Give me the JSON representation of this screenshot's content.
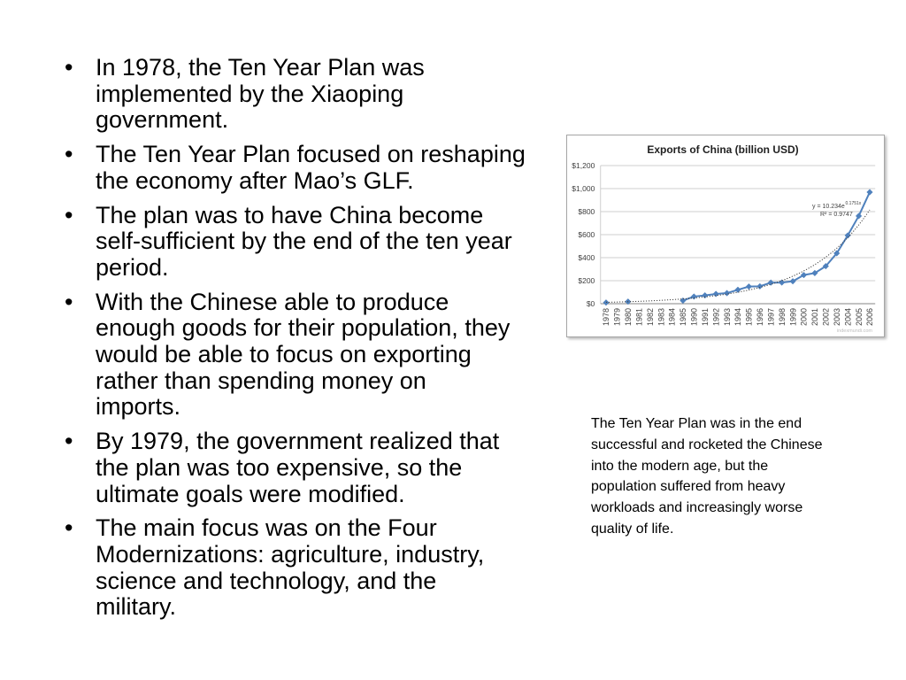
{
  "slide": {
    "bullet_symbol": "•",
    "bullets": [
      {
        "lines": [
          "In 1978, the Ten Year Plan was",
          "implemented by the Xiaoping",
          "government."
        ]
      },
      {
        "lines": [
          "The Ten Year Plan focused on reshaping",
          "the economy after Mao’s GLF."
        ]
      },
      {
        "lines": [
          "The plan was to have China become",
          "self-sufficient by the end of the ten year",
          "period."
        ]
      },
      {
        "lines": [
          "With the Chinese able to produce",
          "enough goods for their population, they",
          "would be able to focus on exporting",
          "rather than spending money on",
          "imports."
        ]
      },
      {
        "lines": [
          "By 1979, the government realized that",
          "the plan was too expensive, so the",
          "ultimate goals were modified."
        ]
      },
      {
        "lines": [
          "The main focus was on the Four",
          "Modernizations: agriculture, industry,",
          "science and technology, and the",
          "military."
        ]
      }
    ],
    "caption": {
      "lines": [
        "The Ten Year Plan was in the end",
        "successful and rocketed the Chinese",
        "into the modern age, but the",
        "population suffered from heavy",
        "workloads and increasingly worse",
        "quality of life."
      ]
    },
    "colors": {
      "background": "#FFFFFF",
      "text": "#000000"
    }
  },
  "chart_data": {
    "type": "line",
    "title": "Exports of China (billion USD)",
    "categories": [
      "1978",
      "1979",
      "1980",
      "1981",
      "1982",
      "1983",
      "1984",
      "1985",
      "1990",
      "1991",
      "1992",
      "1993",
      "1994",
      "1995",
      "1996",
      "1997",
      "1998",
      "1999",
      "2000",
      "2001",
      "2002",
      "2003",
      "2004",
      "2005",
      "2006"
    ],
    "series": [
      {
        "values": [
          10,
          null,
          18,
          null,
          null,
          null,
          null,
          27,
          62,
          72,
          85,
          92,
          121,
          149,
          151,
          183,
          184,
          195,
          249,
          266,
          326,
          438,
          593,
          762,
          969
        ]
      }
    ],
    "ylim": [
      0,
      1200
    ],
    "y_ticks": [
      0,
      200,
      400,
      600,
      800,
      1000,
      1200
    ],
    "y_tick_labels": [
      "$0",
      "$200",
      "$400",
      "$600",
      "$800",
      "$1,000",
      "$1,200"
    ],
    "grid": true,
    "legend": "none",
    "trendline": {
      "coefficient": 10.234,
      "rate": 0.1751,
      "equation": "y = 10.234e",
      "equation_exponent": "0.1751x",
      "r_squared": "R² = 0.9747"
    },
    "watermark": "indexmundi.com",
    "colors": {
      "series": "#4F81BD",
      "trendline": "#404040",
      "grid": "#BFBFBF",
      "axis": "#868686"
    }
  }
}
